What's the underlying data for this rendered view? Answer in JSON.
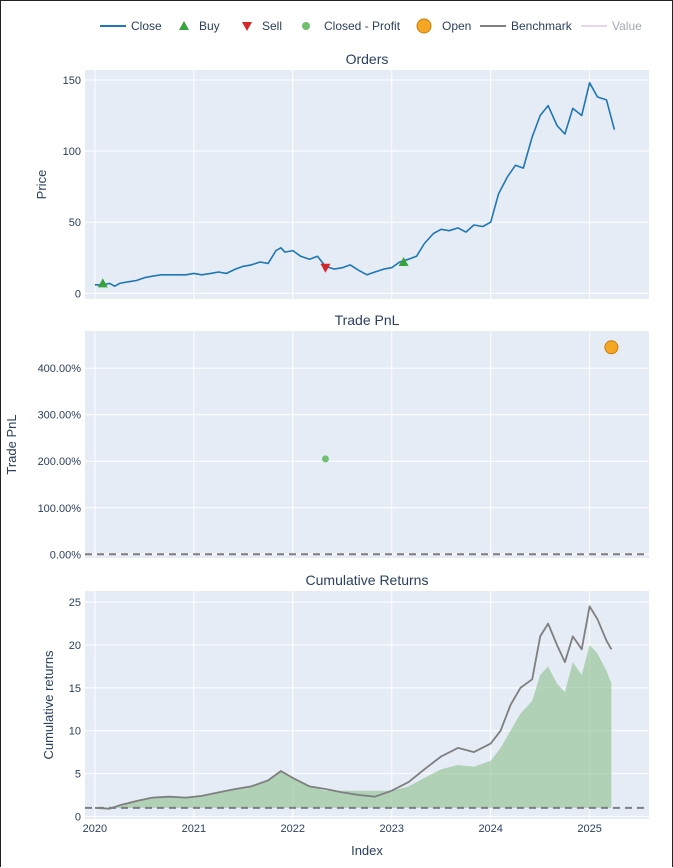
{
  "legend": [
    {
      "label": "Close",
      "kind": "line",
      "color": "#1f77b4"
    },
    {
      "label": "Buy",
      "kind": "tri-up",
      "color": "#37a33d"
    },
    {
      "label": "Sell",
      "kind": "tri-down",
      "color": "#d62728"
    },
    {
      "label": "Closed - Profit",
      "kind": "dot",
      "color": "#6fbf6f"
    },
    {
      "label": "Open",
      "kind": "bigdot",
      "color": "#f5a623"
    },
    {
      "label": "Benchmark",
      "kind": "line",
      "color": "#7f7f7f"
    },
    {
      "label": "Value",
      "kind": "line",
      "color": "#c7a5d6",
      "faded": true
    }
  ],
  "chart_data": [
    {
      "type": "line",
      "title": "Orders",
      "ylabel": "Price",
      "xlim": [
        2019.9,
        2025.6
      ],
      "ylim": [
        -4,
        157
      ],
      "yticks": [
        0,
        50,
        100,
        150
      ],
      "yticklabels": [
        "0",
        "50",
        "100",
        "150"
      ],
      "series": [
        {
          "name": "Close",
          "color": "#1f77b4",
          "x": [
            2020.0,
            2020.08,
            2020.15,
            2020.2,
            2020.25,
            2020.33,
            2020.42,
            2020.5,
            2020.58,
            2020.67,
            2020.75,
            2020.83,
            2020.92,
            2021.0,
            2021.08,
            2021.17,
            2021.25,
            2021.33,
            2021.42,
            2021.5,
            2021.58,
            2021.67,
            2021.75,
            2021.83,
            2021.88,
            2021.92,
            2022.0,
            2022.08,
            2022.17,
            2022.25,
            2022.33,
            2022.42,
            2022.5,
            2022.58,
            2022.67,
            2022.75,
            2022.83,
            2022.92,
            2023.0,
            2023.08,
            2023.17,
            2023.25,
            2023.33,
            2023.42,
            2023.5,
            2023.58,
            2023.67,
            2023.75,
            2023.83,
            2023.92,
            2024.0,
            2024.08,
            2024.17,
            2024.25,
            2024.33,
            2024.42,
            2024.5,
            2024.58,
            2024.67,
            2024.75,
            2024.83,
            2024.92,
            2025.0,
            2025.08,
            2025.17,
            2025.25
          ],
          "y": [
            6,
            6,
            7,
            5,
            7,
            8,
            9,
            11,
            12,
            13,
            13,
            13,
            13,
            14,
            13,
            14,
            15,
            14,
            17,
            19,
            20,
            22,
            21,
            30,
            32,
            29,
            30,
            26,
            24,
            26,
            19,
            17,
            18,
            20,
            16,
            13,
            15,
            17,
            18,
            22,
            24,
            26,
            35,
            42,
            45,
            44,
            46,
            43,
            48,
            47,
            50,
            70,
            82,
            90,
            88,
            110,
            125,
            132,
            118,
            112,
            130,
            125,
            148,
            138,
            136,
            115
          ]
        },
        {
          "name": "Buy",
          "kind": "marker",
          "color": "#37a33d",
          "x": [
            2020.08,
            2023.12
          ],
          "y": [
            7,
            22
          ]
        },
        {
          "name": "Sell",
          "kind": "marker",
          "color": "#d62728",
          "x": [
            2022.33
          ],
          "y": [
            18
          ]
        }
      ]
    },
    {
      "type": "scatter",
      "title": "Trade PnL",
      "ylabel": "Trade PnL",
      "xlim": [
        2019.9,
        2025.6
      ],
      "ylim": [
        -8,
        480
      ],
      "yticks": [
        0,
        100,
        200,
        300,
        400
      ],
      "yticklabels": [
        "0.00%",
        "100.00%",
        "200.00%",
        "300.00%",
        "400.00%"
      ],
      "zero_line": 0,
      "series": [
        {
          "name": "Closed - Profit",
          "color": "#6fbf6f",
          "x": [
            2022.33
          ],
          "y": [
            205
          ]
        },
        {
          "name": "Open",
          "color": "#f5a623",
          "x": [
            2025.22
          ],
          "y": [
            445
          ]
        }
      ]
    },
    {
      "type": "area",
      "title": "Cumulative Returns",
      "ylabel": "Cumulative returns",
      "xlabel": "Index",
      "xlim": [
        2019.9,
        2025.6
      ],
      "ylim": [
        -0.3,
        26.3
      ],
      "yticks": [
        0,
        5,
        10,
        15,
        20,
        25
      ],
      "yticklabels": [
        "0",
        "5",
        "10",
        "15",
        "20",
        "25"
      ],
      "xticks": [
        2020,
        2021,
        2022,
        2023,
        2024,
        2025
      ],
      "xticklabels": [
        "2020",
        "2021",
        "2022",
        "2023",
        "2024",
        "2025"
      ],
      "baseline": 1,
      "series": [
        {
          "name": "Benchmark",
          "color": "#7f7f7f",
          "x": [
            2020.0,
            2020.15,
            2020.25,
            2020.42,
            2020.58,
            2020.75,
            2020.92,
            2021.08,
            2021.25,
            2021.42,
            2021.58,
            2021.75,
            2021.88,
            2022.0,
            2022.17,
            2022.33,
            2022.5,
            2022.67,
            2022.83,
            2023.0,
            2023.17,
            2023.33,
            2023.5,
            2023.67,
            2023.83,
            2024.0,
            2024.1,
            2024.2,
            2024.3,
            2024.42,
            2024.5,
            2024.58,
            2024.67,
            2024.75,
            2024.83,
            2024.92,
            2025.0,
            2025.08,
            2025.17,
            2025.22
          ],
          "y": [
            1.0,
            0.9,
            1.3,
            1.8,
            2.2,
            2.3,
            2.2,
            2.4,
            2.8,
            3.2,
            3.5,
            4.2,
            5.3,
            4.5,
            3.5,
            3.2,
            2.8,
            2.5,
            2.3,
            3.0,
            4.0,
            5.5,
            7.0,
            8.0,
            7.5,
            8.5,
            10.0,
            13.0,
            15.0,
            16.0,
            21.0,
            22.5,
            20.0,
            18.0,
            21.0,
            19.5,
            24.5,
            23.0,
            20.5,
            19.5
          ]
        },
        {
          "name": "Value",
          "color": "#93c393",
          "x": [
            2020.0,
            2020.15,
            2020.25,
            2020.42,
            2020.58,
            2020.75,
            2020.92,
            2021.08,
            2021.25,
            2021.42,
            2021.58,
            2021.75,
            2021.88,
            2022.0,
            2022.17,
            2022.33,
            2022.5,
            2022.67,
            2022.83,
            2023.0,
            2023.17,
            2023.33,
            2023.5,
            2023.67,
            2023.83,
            2024.0,
            2024.1,
            2024.2,
            2024.3,
            2024.42,
            2024.5,
            2024.58,
            2024.67,
            2024.75,
            2024.83,
            2024.92,
            2025.0,
            2025.08,
            2025.17,
            2025.22
          ],
          "y": [
            1.0,
            0.9,
            1.3,
            1.8,
            2.2,
            2.3,
            2.2,
            2.4,
            2.8,
            3.2,
            3.5,
            4.2,
            5.3,
            4.5,
            3.5,
            3.0,
            3.0,
            3.0,
            3.0,
            3.0,
            3.5,
            4.5,
            5.5,
            6.0,
            5.8,
            6.5,
            8.0,
            10.0,
            12.0,
            13.5,
            16.5,
            17.5,
            15.5,
            14.5,
            18.0,
            16.5,
            20.0,
            19.0,
            17.0,
            15.5
          ]
        }
      ]
    }
  ]
}
